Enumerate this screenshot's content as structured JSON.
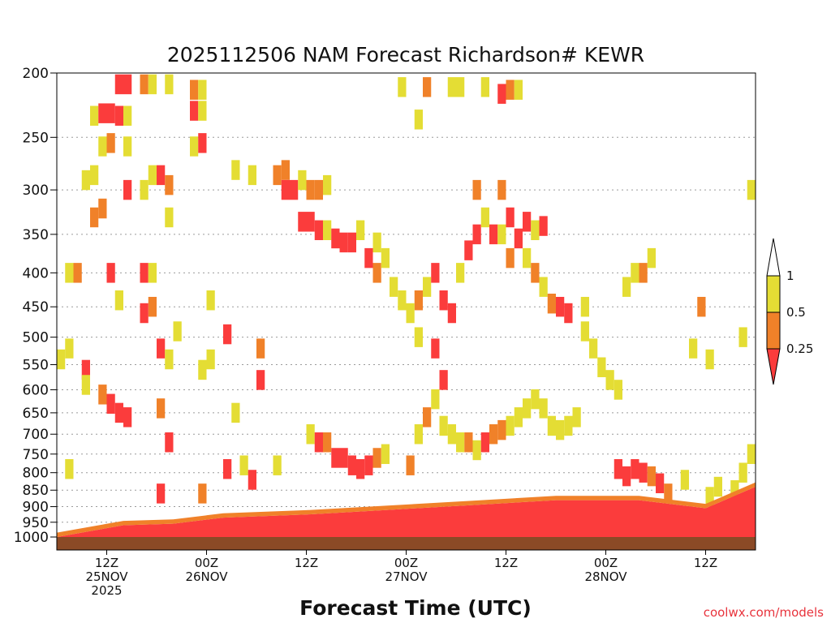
{
  "chart_data": {
    "type": "heatmap",
    "title": "2025112506 NAM Forecast Richardson# KEWR",
    "xlabel": "Forecast Time (UTC)",
    "ylabel": "",
    "credit": "coolwx.com/models",
    "y_axis": {
      "scale": "log",
      "reversed": true,
      "ylim": [
        1000,
        200
      ],
      "ticks": [
        200,
        250,
        300,
        350,
        400,
        450,
        500,
        550,
        600,
        650,
        700,
        750,
        800,
        850,
        900,
        950,
        1000
      ]
    },
    "x_axis": {
      "unit": "forecast hour",
      "xlim": [
        0,
        84
      ],
      "ticks": [
        {
          "hour": 6,
          "label": "12Z",
          "sub": "25NOV",
          "sub2": "2025"
        },
        {
          "hour": 18,
          "label": "00Z",
          "sub": "26NOV",
          "sub2": ""
        },
        {
          "hour": 30,
          "label": "12Z",
          "sub": "",
          "sub2": ""
        },
        {
          "hour": 42,
          "label": "00Z",
          "sub": "27NOV",
          "sub2": ""
        },
        {
          "hour": 54,
          "label": "12Z",
          "sub": "",
          "sub2": ""
        },
        {
          "hour": 66,
          "label": "00Z",
          "sub": "28NOV",
          "sub2": ""
        },
        {
          "hour": 78,
          "label": "12Z",
          "sub": "",
          "sub2": ""
        }
      ]
    },
    "grid": "horizontal dotted",
    "legend": {
      "placement": "right",
      "levels": [
        "1",
        "0.5",
        "0.25"
      ],
      "bins": [
        {
          "range": "> 1",
          "color": "#ffffff"
        },
        {
          "range": "0.5 - 1",
          "color": "#e4dd34"
        },
        {
          "range": "0.25 - 0.5",
          "color": "#f08129"
        },
        {
          "range": "< 0.25",
          "color": "#fb3c3c"
        }
      ]
    },
    "surface_color": "#8b4a26",
    "bands": [
      {
        "h": 0,
        "top": 1000,
        "base": 1010
      },
      {
        "h": 8,
        "top": 960,
        "base": 1005
      },
      {
        "h": 14,
        "top": 955,
        "base": 1005
      },
      {
        "h": 20,
        "top": 935,
        "base": 1003
      },
      {
        "h": 30,
        "top": 925,
        "base": 1003
      },
      {
        "h": 40,
        "top": 910,
        "base": 1002
      },
      {
        "h": 50,
        "top": 895,
        "base": 1001
      },
      {
        "h": 60,
        "top": 880,
        "base": 1000
      },
      {
        "h": 70,
        "top": 880,
        "base": 1000
      },
      {
        "h": 78,
        "top": 905,
        "base": 1000
      },
      {
        "h": 84,
        "top": 840,
        "base": 1000
      }
    ],
    "cells": [
      {
        "h": 7.5,
        "p": 208,
        "v": 0.1
      },
      {
        "h": 8.5,
        "p": 208,
        "v": 0.2
      },
      {
        "h": 10.5,
        "p": 208,
        "v": 0.4
      },
      {
        "h": 11.5,
        "p": 208,
        "v": 0.6
      },
      {
        "h": 13.5,
        "p": 208,
        "v": 0.6
      },
      {
        "h": 16.5,
        "p": 212,
        "v": 0.4
      },
      {
        "h": 17.5,
        "p": 212,
        "v": 0.6
      },
      {
        "h": 4.5,
        "p": 232,
        "v": 0.6
      },
      {
        "h": 5.5,
        "p": 230,
        "v": 0.1
      },
      {
        "h": 6.5,
        "p": 230,
        "v": 0.1
      },
      {
        "h": 7.5,
        "p": 232,
        "v": 0.1
      },
      {
        "h": 8.5,
        "p": 232,
        "v": 0.6
      },
      {
        "h": 16.5,
        "p": 228,
        "v": 0.1
      },
      {
        "h": 17.5,
        "p": 228,
        "v": 0.6
      },
      {
        "h": 5.5,
        "p": 258,
        "v": 0.6
      },
      {
        "h": 6.5,
        "p": 255,
        "v": 0.4
      },
      {
        "h": 8.5,
        "p": 258,
        "v": 0.6
      },
      {
        "h": 11.5,
        "p": 285,
        "v": 0.6
      },
      {
        "h": 12.5,
        "p": 285,
        "v": 0.1
      },
      {
        "h": 13.5,
        "p": 295,
        "v": 0.4
      },
      {
        "h": 16.5,
        "p": 258,
        "v": 0.6
      },
      {
        "h": 17.5,
        "p": 255,
        "v": 0.1
      },
      {
        "h": 3.5,
        "p": 290,
        "v": 0.6
      },
      {
        "h": 4.5,
        "p": 285,
        "v": 0.6
      },
      {
        "h": 5.5,
        "p": 320,
        "v": 0.4
      },
      {
        "h": 8.5,
        "p": 300,
        "v": 0.1
      },
      {
        "h": 10.5,
        "p": 300,
        "v": 0.6
      },
      {
        "h": 13.5,
        "p": 330,
        "v": 0.6
      },
      {
        "h": 21.5,
        "p": 280,
        "v": 0.6
      },
      {
        "h": 23.5,
        "p": 285,
        "v": 0.6
      },
      {
        "h": 26.5,
        "p": 285,
        "v": 0.4
      },
      {
        "h": 27.5,
        "p": 280,
        "v": 0.4
      },
      {
        "h": 27.5,
        "p": 300,
        "v": 0.1
      },
      {
        "h": 28.5,
        "p": 300,
        "v": 0.1
      },
      {
        "h": 29.5,
        "p": 290,
        "v": 0.6
      },
      {
        "h": 30.5,
        "p": 300,
        "v": 0.4
      },
      {
        "h": 31.5,
        "p": 300,
        "v": 0.4
      },
      {
        "h": 32.5,
        "p": 295,
        "v": 0.6
      },
      {
        "h": 29.5,
        "p": 335,
        "v": 0.1
      },
      {
        "h": 30.5,
        "p": 335,
        "v": 0.1
      },
      {
        "h": 31.5,
        "p": 345,
        "v": 0.1
      },
      {
        "h": 32.5,
        "p": 345,
        "v": 0.6
      },
      {
        "h": 33.5,
        "p": 355,
        "v": 0.1
      },
      {
        "h": 34.5,
        "p": 360,
        "v": 0.1
      },
      {
        "h": 35.5,
        "p": 360,
        "v": 0.1
      },
      {
        "h": 36.5,
        "p": 345,
        "v": 0.6
      },
      {
        "h": 38.5,
        "p": 360,
        "v": 0.6
      },
      {
        "h": 37.5,
        "p": 380,
        "v": 0.1
      },
      {
        "h": 38.5,
        "p": 400,
        "v": 0.4
      },
      {
        "h": 39.5,
        "p": 380,
        "v": 0.6
      },
      {
        "h": 40.5,
        "p": 420,
        "v": 0.6
      },
      {
        "h": 41.5,
        "p": 440,
        "v": 0.6
      },
      {
        "h": 43.5,
        "p": 440,
        "v": 0.4
      },
      {
        "h": 44.5,
        "p": 420,
        "v": 0.6
      },
      {
        "h": 45.5,
        "p": 400,
        "v": 0.1
      },
      {
        "h": 46.5,
        "p": 440,
        "v": 0.1
      },
      {
        "h": 47.5,
        "p": 460,
        "v": 0.1
      },
      {
        "h": 48.5,
        "p": 400,
        "v": 0.6
      },
      {
        "h": 49.5,
        "p": 370,
        "v": 0.1
      },
      {
        "h": 50.5,
        "p": 350,
        "v": 0.1
      },
      {
        "h": 51.5,
        "p": 330,
        "v": 0.6
      },
      {
        "h": 52.5,
        "p": 350,
        "v": 0.1
      },
      {
        "h": 53.5,
        "p": 350,
        "v": 0.6
      },
      {
        "h": 54.5,
        "p": 380,
        "v": 0.4
      },
      {
        "h": 55.5,
        "p": 355,
        "v": 0.1
      },
      {
        "h": 56.5,
        "p": 380,
        "v": 0.6
      },
      {
        "h": 57.5,
        "p": 400,
        "v": 0.4
      },
      {
        "h": 58.5,
        "p": 420,
        "v": 0.6
      },
      {
        "h": 59.5,
        "p": 445,
        "v": 0.4
      },
      {
        "h": 60.5,
        "p": 450,
        "v": 0.1
      },
      {
        "h": 61.5,
        "p": 460,
        "v": 0.1
      },
      {
        "h": 63.5,
        "p": 450,
        "v": 0.6
      },
      {
        "h": 63.5,
        "p": 490,
        "v": 0.6
      },
      {
        "h": 64.5,
        "p": 520,
        "v": 0.6
      },
      {
        "h": 65.5,
        "p": 555,
        "v": 0.6
      },
      {
        "h": 66.5,
        "p": 580,
        "v": 0.6
      },
      {
        "h": 67.5,
        "p": 600,
        "v": 0.6
      },
      {
        "h": 68.5,
        "p": 420,
        "v": 0.6
      },
      {
        "h": 69.5,
        "p": 400,
        "v": 0.6
      },
      {
        "h": 70.5,
        "p": 400,
        "v": 0.4
      },
      {
        "h": 71.5,
        "p": 380,
        "v": 0.6
      },
      {
        "h": 44.5,
        "p": 210,
        "v": 0.4
      },
      {
        "h": 47.5,
        "p": 210,
        "v": 0.6
      },
      {
        "h": 48.5,
        "p": 210,
        "v": 0.6
      },
      {
        "h": 51.5,
        "p": 210,
        "v": 0.6
      },
      {
        "h": 53.5,
        "p": 215,
        "v": 0.1
      },
      {
        "h": 54.5,
        "p": 212,
        "v": 0.4
      },
      {
        "h": 55.5,
        "p": 212,
        "v": 0.6
      },
      {
        "h": 41.5,
        "p": 210,
        "v": 0.6
      },
      {
        "h": 43.5,
        "p": 235,
        "v": 0.6
      },
      {
        "h": 50.5,
        "p": 300,
        "v": 0.4
      },
      {
        "h": 53.5,
        "p": 300,
        "v": 0.4
      },
      {
        "h": 54.5,
        "p": 330,
        "v": 0.1
      },
      {
        "h": 56.5,
        "p": 335,
        "v": 0.1
      },
      {
        "h": 57.5,
        "p": 345,
        "v": 0.6
      },
      {
        "h": 58.5,
        "p": 340,
        "v": 0.1
      },
      {
        "h": 4.5,
        "p": 330,
        "v": 0.4
      },
      {
        "h": 6.5,
        "p": 400,
        "v": 0.1
      },
      {
        "h": 2.5,
        "p": 400,
        "v": 0.4
      },
      {
        "h": 1.5,
        "p": 400,
        "v": 0.6
      },
      {
        "h": 10.5,
        "p": 400,
        "v": 0.1
      },
      {
        "h": 11.5,
        "p": 400,
        "v": 0.6
      },
      {
        "h": 7.5,
        "p": 440,
        "v": 0.6
      },
      {
        "h": 11.5,
        "p": 450,
        "v": 0.4
      },
      {
        "h": 10.5,
        "p": 460,
        "v": 0.1
      },
      {
        "h": 14.5,
        "p": 490,
        "v": 0.6
      },
      {
        "h": 12.5,
        "p": 520,
        "v": 0.1
      },
      {
        "h": 13.5,
        "p": 540,
        "v": 0.6
      },
      {
        "h": 18.5,
        "p": 440,
        "v": 0.6
      },
      {
        "h": 18.5,
        "p": 540,
        "v": 0.6
      },
      {
        "h": 20.5,
        "p": 495,
        "v": 0.1
      },
      {
        "h": 24.5,
        "p": 520,
        "v": 0.4
      },
      {
        "h": 1.5,
        "p": 520,
        "v": 0.6
      },
      {
        "h": 3.5,
        "p": 560,
        "v": 0.1
      },
      {
        "h": 0.5,
        "p": 540,
        "v": 0.6
      },
      {
        "h": 5.5,
        "p": 610,
        "v": 0.4
      },
      {
        "h": 6.5,
        "p": 630,
        "v": 0.1
      },
      {
        "h": 7.5,
        "p": 650,
        "v": 0.1
      },
      {
        "h": 8.5,
        "p": 660,
        "v": 0.1
      },
      {
        "h": 3.5,
        "p": 590,
        "v": 0.6
      },
      {
        "h": 12.5,
        "p": 640,
        "v": 0.4
      },
      {
        "h": 13.5,
        "p": 720,
        "v": 0.1
      },
      {
        "h": 24.5,
        "p": 580,
        "v": 0.1
      },
      {
        "h": 21.5,
        "p": 650,
        "v": 0.6
      },
      {
        "h": 17.5,
        "p": 560,
        "v": 0.6
      },
      {
        "h": 22.5,
        "p": 780,
        "v": 0.6
      },
      {
        "h": 1.5,
        "p": 790,
        "v": 0.6
      },
      {
        "h": 12.5,
        "p": 860,
        "v": 0.1
      },
      {
        "h": 17.5,
        "p": 860,
        "v": 0.4
      },
      {
        "h": 20.5,
        "p": 790,
        "v": 0.1
      },
      {
        "h": 23.5,
        "p": 820,
        "v": 0.1
      },
      {
        "h": 26.5,
        "p": 780,
        "v": 0.6
      },
      {
        "h": 30.5,
        "p": 700,
        "v": 0.6
      },
      {
        "h": 31.5,
        "p": 720,
        "v": 0.1
      },
      {
        "h": 32.5,
        "p": 720,
        "v": 0.4
      },
      {
        "h": 33.5,
        "p": 760,
        "v": 0.1
      },
      {
        "h": 34.5,
        "p": 760,
        "v": 0.1
      },
      {
        "h": 35.5,
        "p": 780,
        "v": 0.1
      },
      {
        "h": 36.5,
        "p": 790,
        "v": 0.1
      },
      {
        "h": 37.5,
        "p": 780,
        "v": 0.1
      },
      {
        "h": 38.5,
        "p": 760,
        "v": 0.4
      },
      {
        "h": 39.5,
        "p": 750,
        "v": 0.6
      },
      {
        "h": 42.5,
        "p": 780,
        "v": 0.4
      },
      {
        "h": 43.5,
        "p": 700,
        "v": 0.6
      },
      {
        "h": 44.5,
        "p": 660,
        "v": 0.4
      },
      {
        "h": 45.5,
        "p": 620,
        "v": 0.6
      },
      {
        "h": 46.5,
        "p": 680,
        "v": 0.6
      },
      {
        "h": 47.5,
        "p": 700,
        "v": 0.6
      },
      {
        "h": 48.5,
        "p": 720,
        "v": 0.6
      },
      {
        "h": 49.5,
        "p": 720,
        "v": 0.4
      },
      {
        "h": 50.5,
        "p": 740,
        "v": 0.6
      },
      {
        "h": 51.5,
        "p": 720,
        "v": 0.1
      },
      {
        "h": 52.5,
        "p": 700,
        "v": 0.4
      },
      {
        "h": 53.5,
        "p": 690,
        "v": 0.4
      },
      {
        "h": 54.5,
        "p": 680,
        "v": 0.6
      },
      {
        "h": 55.5,
        "p": 660,
        "v": 0.6
      },
      {
        "h": 56.5,
        "p": 640,
        "v": 0.6
      },
      {
        "h": 57.5,
        "p": 620,
        "v": 0.6
      },
      {
        "h": 58.5,
        "p": 640,
        "v": 0.6
      },
      {
        "h": 59.5,
        "p": 680,
        "v": 0.6
      },
      {
        "h": 60.5,
        "p": 690,
        "v": 0.6
      },
      {
        "h": 61.5,
        "p": 680,
        "v": 0.6
      },
      {
        "h": 62.5,
        "p": 660,
        "v": 0.6
      },
      {
        "h": 45.5,
        "p": 520,
        "v": 0.1
      },
      {
        "h": 43.5,
        "p": 500,
        "v": 0.6
      },
      {
        "h": 46.5,
        "p": 580,
        "v": 0.1
      },
      {
        "h": 42.5,
        "p": 460,
        "v": 0.6
      },
      {
        "h": 67.5,
        "p": 790,
        "v": 0.1
      },
      {
        "h": 68.5,
        "p": 810,
        "v": 0.1
      },
      {
        "h": 69.5,
        "p": 790,
        "v": 0.1
      },
      {
        "h": 70.5,
        "p": 800,
        "v": 0.1
      },
      {
        "h": 71.5,
        "p": 810,
        "v": 0.4
      },
      {
        "h": 72.5,
        "p": 830,
        "v": 0.1
      },
      {
        "h": 73.5,
        "p": 860,
        "v": 0.4
      },
      {
        "h": 75.5,
        "p": 820,
        "v": 0.6
      },
      {
        "h": 77.5,
        "p": 450,
        "v": 0.4
      },
      {
        "h": 76.5,
        "p": 520,
        "v": 0.6
      },
      {
        "h": 78.5,
        "p": 540,
        "v": 0.6
      },
      {
        "h": 82.5,
        "p": 500,
        "v": 0.6
      },
      {
        "h": 83.5,
        "p": 300,
        "v": 0.6
      },
      {
        "h": 83.5,
        "p": 750,
        "v": 0.6
      },
      {
        "h": 82.5,
        "p": 800,
        "v": 0.6
      },
      {
        "h": 78.5,
        "p": 870,
        "v": 0.6
      },
      {
        "h": 79.5,
        "p": 840,
        "v": 0.6
      },
      {
        "h": 81.5,
        "p": 850,
        "v": 0.6
      }
    ]
  }
}
